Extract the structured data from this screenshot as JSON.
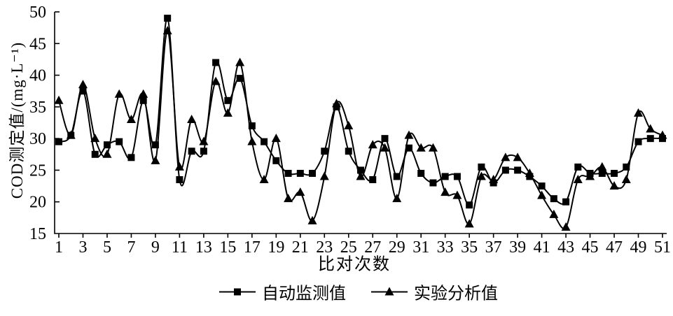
{
  "figure": {
    "background": "#ffffff",
    "ink_color": "#000000"
  },
  "chart_data": {
    "type": "line",
    "title": "",
    "xlabel": "比对次数",
    "ylabel": "COD测定值/(mg·L⁻¹)",
    "ylim": [
      15,
      50
    ],
    "yticks": [
      15,
      20,
      25,
      30,
      35,
      40,
      45,
      50
    ],
    "xticks": [
      1,
      3,
      5,
      7,
      9,
      11,
      13,
      15,
      17,
      19,
      21,
      23,
      25,
      27,
      29,
      31,
      33,
      35,
      37,
      39,
      41,
      43,
      45,
      47,
      49,
      51
    ],
    "x": [
      1,
      2,
      3,
      4,
      5,
      6,
      7,
      8,
      9,
      10,
      11,
      12,
      13,
      14,
      15,
      16,
      17,
      18,
      19,
      20,
      21,
      22,
      23,
      24,
      25,
      26,
      27,
      28,
      29,
      30,
      31,
      32,
      33,
      34,
      35,
      36,
      37,
      38,
      39,
      40,
      41,
      42,
      43,
      44,
      45,
      46,
      47,
      48,
      49,
      50,
      51
    ],
    "grid": false,
    "smoothed_lines": true,
    "legend_position": "bottom",
    "line_color": "#000000",
    "series": [
      {
        "key": "auto-monitoring",
        "name": "自动监测值",
        "marker": "square",
        "values": [
          29.5,
          30.5,
          37.5,
          27.5,
          29,
          29.5,
          27,
          36,
          29,
          49,
          23.5,
          28,
          28,
          42,
          36,
          39.5,
          32,
          29.5,
          26.5,
          24.5,
          24.5,
          24.5,
          28,
          35,
          28,
          25,
          23.5,
          30,
          24,
          28.5,
          24.5,
          23,
          24,
          24,
          19.5,
          25.5,
          23,
          25,
          25,
          24,
          22.5,
          20.5,
          20,
          25.5,
          24.5,
          24.5,
          24.5,
          25.5,
          29.5,
          30,
          30
        ]
      },
      {
        "key": "lab-analysis",
        "name": "实验分析值",
        "marker": "triangle",
        "values": [
          36,
          30.5,
          38.5,
          30,
          27.5,
          37,
          33,
          37,
          26.5,
          47,
          25.5,
          33,
          29.5,
          39,
          34,
          42,
          29.5,
          23.5,
          30,
          20.5,
          21.5,
          17,
          24,
          35.5,
          32,
          24,
          29,
          28.5,
          20.5,
          30.5,
          28.5,
          28.5,
          21.5,
          21,
          16.5,
          24,
          23.5,
          27,
          27,
          24.5,
          21,
          18,
          16,
          23.5,
          24,
          25.5,
          22.5,
          23.5,
          34,
          31.5,
          30.5
        ]
      }
    ]
  }
}
